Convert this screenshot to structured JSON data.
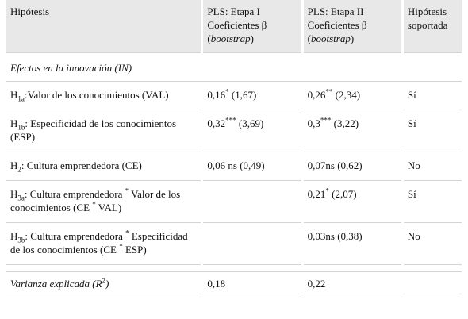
{
  "table": {
    "header": [
      [
        {
          "t": "Hipótesis"
        }
      ],
      [
        {
          "t": "PLS: Etapa I Coeficientes β ("
        },
        {
          "i": "bootstrap"
        },
        {
          "t": ")"
        }
      ],
      [
        {
          "t": "PLS: Etapa II Coeficientes β ("
        },
        {
          "i": "bootstrap"
        },
        {
          "t": ")"
        }
      ],
      [
        {
          "t": "Hipótesis soportada"
        }
      ]
    ],
    "section": "Efectos en la innovación (IN)",
    "rows": [
      [
        [
          {
            "t": "H"
          },
          {
            "sub": "1a"
          },
          {
            "t": ":Valor de los conocimientos (VAL)"
          }
        ],
        [
          {
            "t": "0,16"
          },
          {
            "sup": "*"
          },
          {
            "t": " (1,67)"
          }
        ],
        [
          {
            "t": "0,26"
          },
          {
            "sup": "**"
          },
          {
            "t": " (2,34)"
          }
        ],
        [
          {
            "t": "Sí"
          }
        ]
      ],
      [
        [
          {
            "t": "H"
          },
          {
            "sub": "1b"
          },
          {
            "t": ": Especificidad de los conocimientos (ESP)"
          }
        ],
        [
          {
            "t": "0,32"
          },
          {
            "sup": "***"
          },
          {
            "t": " (3,69)"
          }
        ],
        [
          {
            "t": "0,3"
          },
          {
            "sup": "***"
          },
          {
            "t": " (3,22)"
          }
        ],
        [
          {
            "t": "Sí"
          }
        ]
      ],
      [
        [
          {
            "t": "H"
          },
          {
            "sub": "2"
          },
          {
            "t": ": Cultura emprendedora (CE)"
          }
        ],
        [
          {
            "t": "0,06 ns (0,49)"
          }
        ],
        [
          {
            "t": "0,07ns (0,62)"
          }
        ],
        [
          {
            "t": "No"
          }
        ]
      ],
      [
        [
          {
            "t": "H"
          },
          {
            "sub": "3a"
          },
          {
            "t": ": Cultura emprendedora "
          },
          {
            "sup": "*"
          },
          {
            "t": " Valor de los conocimientos (CE "
          },
          {
            "sup": "*"
          },
          {
            "t": " VAL)"
          }
        ],
        null,
        [
          {
            "t": "0,21"
          },
          {
            "sup": "*"
          },
          {
            "t": " (2,07)"
          }
        ],
        [
          {
            "t": "Sí"
          }
        ]
      ],
      [
        [
          {
            "t": "H"
          },
          {
            "sub": "3b"
          },
          {
            "t": ": Cultura emprendedora "
          },
          {
            "sup": "*"
          },
          {
            "t": " Especificidad de los conocimientos (CE "
          },
          {
            "sup": "*"
          },
          {
            "t": " ESP)"
          }
        ],
        null,
        [
          {
            "t": "0,03ns (0,38)"
          }
        ],
        [
          {
            "t": "No"
          }
        ]
      ]
    ],
    "footer": [
      [
        {
          "i": "Varianza explicada (R"
        },
        {
          "sup": "2"
        },
        {
          "i": ")"
        }
      ],
      [
        {
          "t": "0,18"
        }
      ],
      [
        {
          "t": "0,22"
        }
      ],
      null
    ]
  }
}
